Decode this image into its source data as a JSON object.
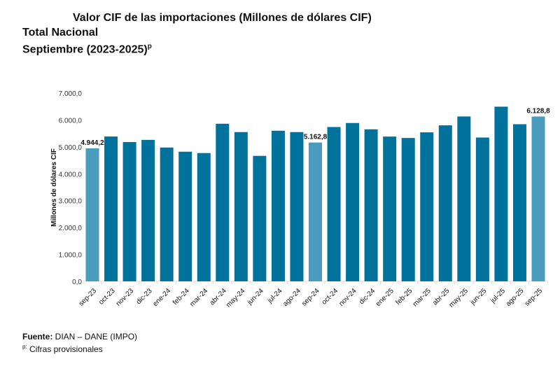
{
  "chart_data": {
    "type": "bar",
    "title": "Valor CIF de las importaciones (Millones de dólares CIF)",
    "subtitle_1": "Total Nacional",
    "subtitle_2": "Septiembre (2023-2025)",
    "subtitle_sup": "p",
    "ylabel": "Millones de dólares CIF",
    "xlabel": "",
    "ylim": [
      0,
      7000
    ],
    "yticks": [
      "0,0",
      "1.000,0",
      "2.000,0",
      "3.000,0",
      "4.000,0",
      "5.000,0",
      "6.000,0",
      "7.000,0"
    ],
    "grid": false,
    "categories": [
      "sep-23",
      "oct-23",
      "nov-23",
      "dic-23",
      "ene-24",
      "feb-24",
      "mar-24",
      "abr-24",
      "may-24",
      "jun-24",
      "jul-24",
      "ago-24",
      "sep-24",
      "oct-24",
      "nov-24",
      "dic-24",
      "ene-25",
      "feb-25",
      "mar-25",
      "abr-25",
      "may-25",
      "jun-25",
      "jul-25",
      "ago-25",
      "sep-25"
    ],
    "values": [
      4944.2,
      5385,
      5180,
      5260,
      4975,
      4820,
      4770,
      5860,
      5550,
      4665,
      5600,
      5550,
      5162.8,
      5738,
      5887,
      5652,
      5383,
      5331,
      5540,
      5800,
      6130,
      5347,
      6494,
      5842,
      6128.8
    ],
    "highlighted": [
      "sep-23",
      "sep-24",
      "sep-25"
    ],
    "data_labels": {
      "sep-23": "4.944,2",
      "sep-24": "5.162,8",
      "sep-25": "6.128,8"
    },
    "colors": {
      "bar": "#00729c",
      "highlight": "#4a9cbc"
    }
  },
  "footer": {
    "source_label": "Fuente:",
    "source_text": " DIAN – DANE (IMPO)",
    "note_sup": "p:",
    "note_text": " Cifras provisionales"
  }
}
